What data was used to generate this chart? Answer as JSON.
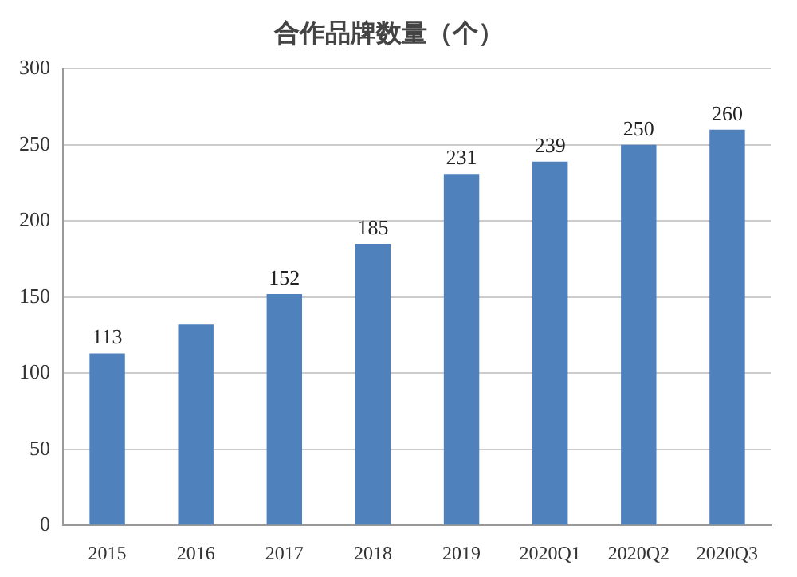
{
  "chart_data": {
    "type": "bar",
    "title": "合作品牌数量（个）",
    "categories": [
      "2015",
      "2016",
      "2017",
      "2018",
      "2019",
      "2020Q1",
      "2020Q2",
      "2020Q3"
    ],
    "values": [
      113,
      132,
      152,
      185,
      231,
      239,
      250,
      260
    ],
    "value_labels": [
      "113",
      null,
      "152",
      "185",
      "231",
      "239",
      "250",
      "260"
    ],
    "color": "#4f81bd",
    "ylim": [
      0,
      300
    ],
    "yticks": [
      0,
      50,
      100,
      150,
      200,
      250,
      300
    ],
    "grid": "y",
    "legend": false
  }
}
